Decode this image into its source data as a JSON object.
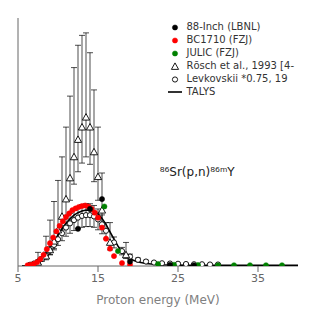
{
  "chart_data": {
    "type": "scatter",
    "xlabel": "Proton energy  (MeV)",
    "xlim": [
      5,
      40
    ],
    "xticks": [
      5,
      15,
      25,
      35
    ],
    "ylim": [
      0,
      1000
    ],
    "tick_labels": "x",
    "grid": false,
    "legend": "upper right",
    "annotations": [
      {
        "text": "⁸⁶Sr(p,n)⁸⁶ᵐY"
      }
    ],
    "series": [
      {
        "name": "88-Inch (LBNL)",
        "type": "scatter",
        "color": "black",
        "marker": "circle",
        "x": [
          12.5,
          14.0,
          15.5,
          19.0,
          24.0,
          27.0
        ],
        "values": [
          150,
          230,
          270,
          18,
          5,
          3
        ]
      },
      {
        "name": "BC1710 (FZJ)",
        "type": "scatter",
        "color": "red",
        "marker": "circle",
        "x": [
          6.2,
          6.6,
          7.0,
          7.4,
          7.8,
          8.2,
          8.6,
          9.0,
          9.4,
          9.8,
          10.2,
          10.6,
          11.0,
          11.4,
          11.8,
          12.2,
          12.6,
          13.0,
          13.4,
          13.8,
          14.2,
          14.6,
          15.0,
          15.5,
          16.0,
          16.5,
          17.0,
          18.0,
          19.0
        ],
        "values": [
          3,
          5,
          9,
          16,
          28,
          45,
          68,
          92,
          115,
          140,
          162,
          180,
          198,
          212,
          225,
          232,
          238,
          242,
          244,
          240,
          230,
          215,
          195,
          155,
          110,
          70,
          40,
          12,
          6
        ]
      },
      {
        "name": "JULIC (FZJ)",
        "type": "scatter",
        "color": "green",
        "marker": "circle",
        "x": [
          15.8,
          17.5,
          22.5,
          24.5,
          27.5,
          30.0,
          32.0,
          34.0,
          36.0,
          38.0
        ],
        "values": [
          240,
          60,
          8,
          5,
          4,
          3,
          3,
          3,
          3,
          3
        ]
      },
      {
        "name": "Rōsch et al., 1993 [4-",
        "type": "scatter",
        "color": "black",
        "marker": "open_triangle",
        "x": [
          7.5,
          8.5,
          9.0,
          9.5,
          10.0,
          10.5,
          11.0,
          11.5,
          12.0,
          12.5,
          13.0,
          13.5,
          14.0,
          14.5,
          15.0,
          15.5,
          16.5,
          18.5
        ],
        "values": [
          15,
          40,
          65,
          100,
          145,
          200,
          270,
          355,
          440,
          510,
          560,
          600,
          560,
          460,
          360,
          225,
          95,
          45
        ],
        "errors_low": [
          8,
          15,
          20,
          30,
          40,
          55,
          70,
          90,
          110,
          130,
          145,
          160,
          150,
          120,
          95,
          65,
          30,
          15
        ],
        "errors_high": [
          40,
          80,
          120,
          160,
          200,
          240,
          290,
          330,
          360,
          380,
          370,
          340,
          300,
          250,
          200,
          150,
          80,
          50
        ]
      },
      {
        "name": "Levkovskii *0.75, 19",
        "type": "scatter",
        "color": "black",
        "marker": "open_circle",
        "x": [
          6.5,
          7.0,
          7.5,
          8.0,
          8.5,
          9.0,
          9.5,
          10.0,
          10.5,
          11.0,
          11.5,
          12.0,
          12.5,
          13.0,
          13.5,
          14.0,
          14.5,
          15.0,
          15.5,
          16.0,
          17.0,
          18.0,
          19.0,
          20.0,
          21.0,
          22.0,
          23.0,
          24.0,
          25.0,
          26.0,
          27.0,
          28.0,
          29.0,
          30.0
        ],
        "values": [
          5,
          10,
          17,
          28,
          44,
          62,
          85,
          108,
          132,
          155,
          172,
          185,
          195,
          202,
          205,
          205,
          200,
          188,
          168,
          142,
          95,
          60,
          38,
          25,
          18,
          14,
          11,
          10,
          9,
          8,
          7,
          7,
          6,
          6
        ],
        "errors": [
          3,
          5,
          7,
          9,
          12,
          16,
          20,
          25,
          30,
          35,
          40,
          42,
          44,
          46,
          46,
          46,
          44,
          42,
          38,
          33,
          22,
          15,
          10,
          7,
          5,
          4,
          3,
          3,
          3,
          3,
          3,
          3,
          3,
          3
        ]
      },
      {
        "name": "TALYS",
        "type": "line",
        "color": "black",
        "line_style": "solid",
        "x": [
          5.5,
          6.0,
          6.5,
          7.0,
          7.5,
          8.0,
          8.5,
          9.0,
          9.5,
          10.0,
          10.5,
          11.0,
          11.5,
          12.0,
          12.5,
          13.0,
          13.5,
          14.0,
          14.5,
          15.0,
          15.5,
          16.0,
          16.5,
          17.0,
          17.5,
          18.0,
          19.0,
          20.0,
          21.0,
          22.0,
          23.0,
          24.0,
          25.0,
          26.0,
          27.0,
          28.0,
          29.0,
          30.0,
          32.0,
          35.0,
          38.0,
          40.0
        ],
        "values": [
          0,
          1,
          3,
          7,
          15,
          28,
          48,
          72,
          98,
          125,
          150,
          172,
          190,
          205,
          215,
          222,
          226,
          225,
          220,
          210,
          192,
          168,
          138,
          108,
          80,
          56,
          28,
          16,
          10,
          7,
          5,
          4,
          3.5,
          3,
          3,
          3,
          3,
          3,
          3,
          3,
          3,
          3
        ]
      }
    ]
  }
}
